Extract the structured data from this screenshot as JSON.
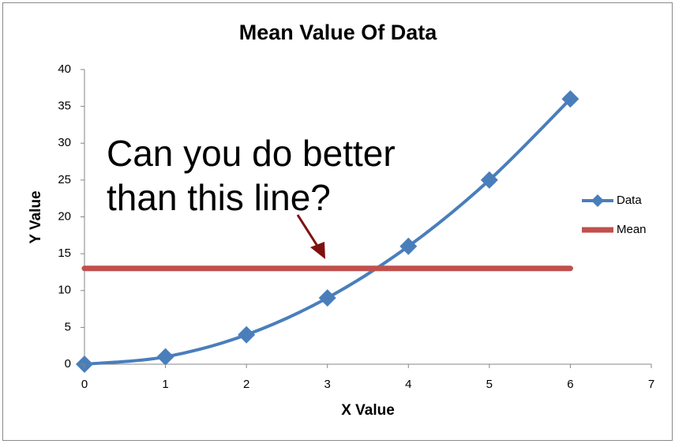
{
  "chart_data": {
    "type": "line",
    "title": "Mean Value Of Data",
    "x_label": "X Value",
    "y_label": "Y Value",
    "x": [
      0,
      1,
      2,
      3,
      4,
      5,
      6
    ],
    "series": [
      {
        "name": "Data",
        "color": "#4a7ebb",
        "values": [
          0,
          1,
          4,
          9,
          16,
          25,
          36
        ],
        "marker": "diamond",
        "smooth": true
      },
      {
        "name": "Mean",
        "color": "#c0504d",
        "values": [
          13,
          13,
          13,
          13,
          13,
          13,
          13
        ]
      }
    ],
    "xlim": [
      0,
      7
    ],
    "xticks": [
      0,
      1,
      2,
      3,
      4,
      5,
      6,
      7
    ],
    "ylim": [
      0,
      40
    ],
    "yticks": [
      0,
      5,
      10,
      15,
      20,
      25,
      30,
      35,
      40
    ],
    "grid": false,
    "legend": "right",
    "annotation": {
      "lines": [
        "Can you do better",
        "than this line?"
      ],
      "color": "#7f1010"
    }
  }
}
